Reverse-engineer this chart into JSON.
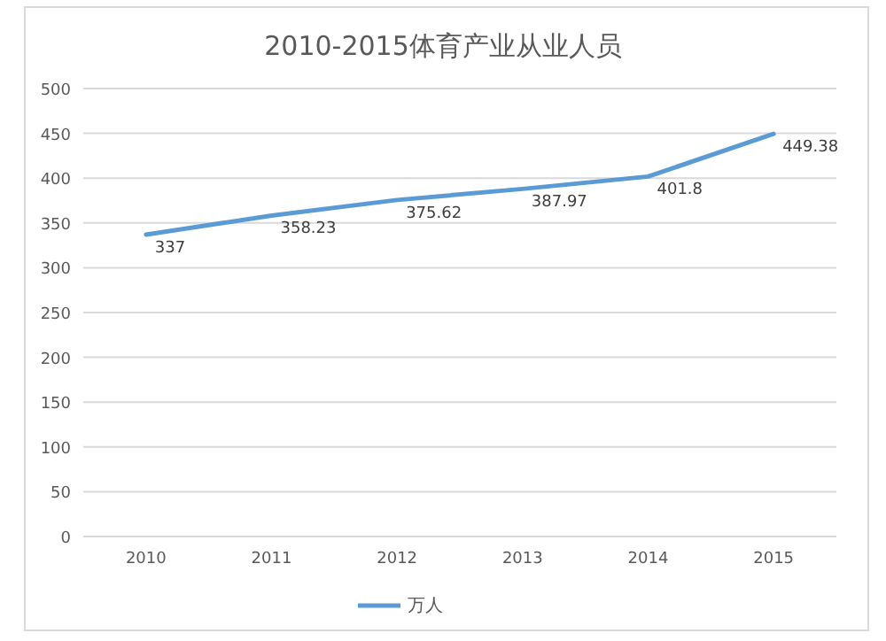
{
  "chart_data": {
    "type": "line",
    "title": "2010-2015体育产业从业人员",
    "categories": [
      "2010",
      "2011",
      "2012",
      "2013",
      "2014",
      "2015"
    ],
    "series": [
      {
        "name": "万人",
        "color": "#5b9bd5",
        "values": [
          337,
          358.23,
          375.62,
          387.97,
          401.8,
          449.38
        ]
      }
    ],
    "ylim": [
      0,
      500
    ],
    "yticks": [
      0,
      50,
      100,
      150,
      200,
      250,
      300,
      350,
      400,
      450,
      500
    ],
    "grid": "y",
    "data_labels": true,
    "legend": "bottom",
    "marker": "none",
    "line_style": "solid"
  }
}
